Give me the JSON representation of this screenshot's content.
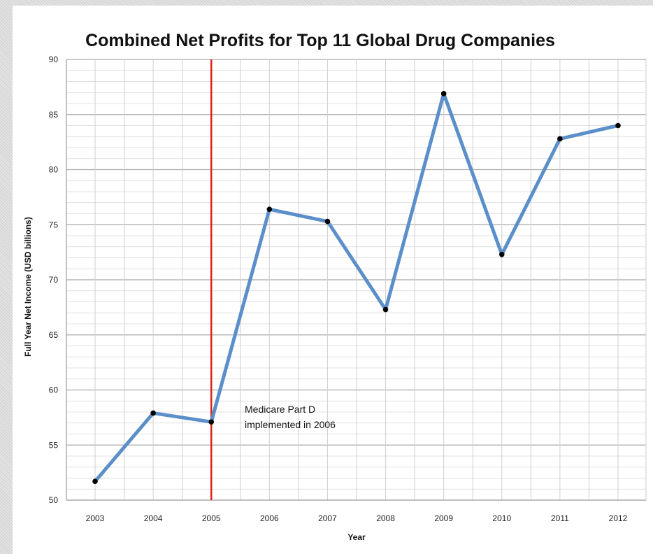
{
  "chart_data": {
    "type": "line",
    "title": "Combined Net Profits for Top 11 Global Drug Companies",
    "xlabel": "Year",
    "ylabel": "Full Year Net Income (USD billions)",
    "categories": [
      "2003",
      "2004",
      "2005",
      "2006",
      "2007",
      "2008",
      "2009",
      "2010",
      "2011",
      "2012"
    ],
    "series": [
      {
        "values": [
          51.7,
          57.9,
          57.1,
          76.4,
          75.3,
          67.3,
          86.9,
          72.3,
          82.8,
          84.0
        ]
      }
    ],
    "ylim": [
      50,
      90
    ],
    "yticks": [
      50,
      55,
      60,
      65,
      70,
      75,
      80,
      85,
      90
    ],
    "grid": true,
    "line_color": "#5b8fc9",
    "marker_color": "#000000",
    "reference_line": {
      "x": "2005",
      "color": "#d9261c",
      "annotation": [
        "Medicare Part D",
        "implemented in 2006"
      ]
    }
  }
}
